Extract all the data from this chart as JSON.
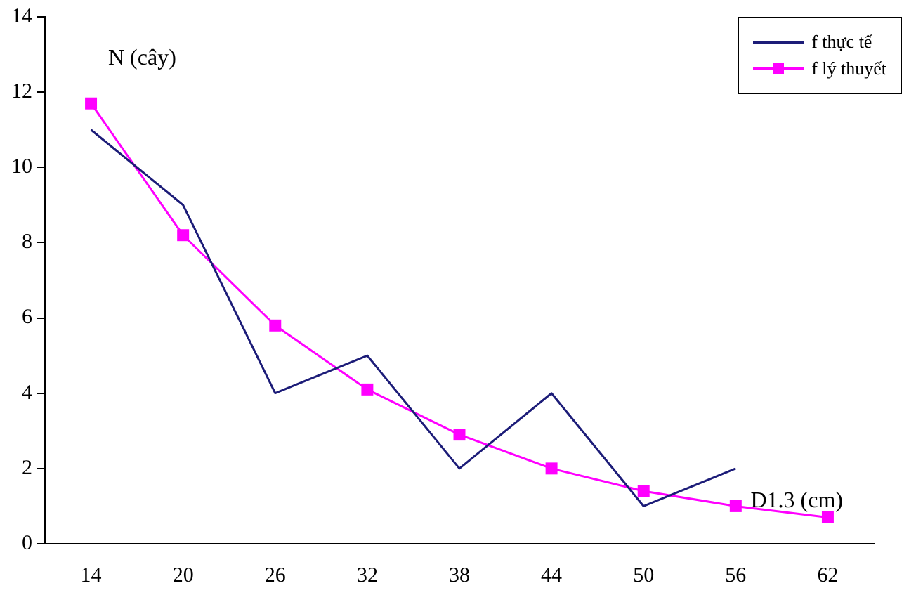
{
  "chart_data": {
    "type": "line",
    "xlabel": "D1.3 (cm)",
    "ylabel": "N (cây)",
    "categories": [
      "14",
      "20",
      "26",
      "32",
      "38",
      "44",
      "50",
      "56",
      "62"
    ],
    "series": [
      {
        "name": "f thực tế",
        "color": "#1c1c78",
        "values": [
          11,
          9,
          4,
          5,
          2,
          4,
          1,
          2,
          null
        ],
        "marker": "none"
      },
      {
        "name": "f lý thuyết",
        "color": "#ff00ff",
        "values": [
          11.7,
          8.2,
          5.8,
          4.1,
          2.9,
          2.0,
          1.4,
          1.0,
          0.7
        ],
        "marker": "square"
      }
    ],
    "ylim": [
      0,
      14
    ],
    "yticks": [
      0,
      2,
      4,
      6,
      8,
      10,
      12,
      14
    ],
    "grid": false,
    "legend": "top right",
    "line_style": "solid"
  }
}
